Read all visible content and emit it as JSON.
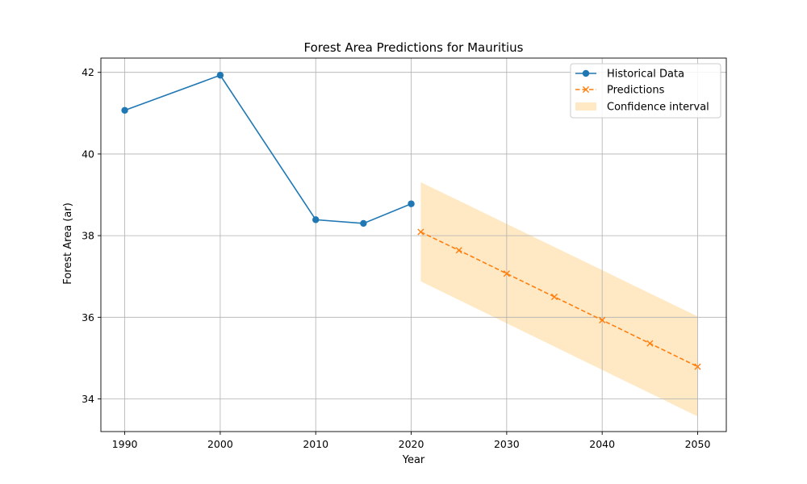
{
  "chart_data": {
    "type": "line",
    "title": "Forest Area Predictions for Mauritius",
    "xlabel": "Year",
    "ylabel": "Forest Area (ar)",
    "xlim": [
      1987.5,
      2053
    ],
    "ylim": [
      33.2,
      42.35
    ],
    "xticks": [
      1990,
      2000,
      2010,
      2020,
      2030,
      2040,
      2050
    ],
    "yticks": [
      34,
      36,
      38,
      40,
      42
    ],
    "grid": true,
    "legend_position": "top-right",
    "series": [
      {
        "name": "Historical Data",
        "style": "solid",
        "marker": "circle",
        "color": "#1f77b4",
        "x": [
          1990,
          2000,
          2010,
          2015,
          2020
        ],
        "y": [
          41.07,
          41.93,
          38.39,
          38.3,
          38.78
        ]
      },
      {
        "name": "Predictions",
        "style": "dashed",
        "marker": "x",
        "color": "#ff7f0e",
        "x": [
          2021,
          2025,
          2030,
          2035,
          2040,
          2045,
          2050
        ],
        "y": [
          38.09,
          37.64,
          37.07,
          36.5,
          35.93,
          35.36,
          34.79
        ]
      }
    ],
    "confidence_interval": {
      "name": "Confidence interval",
      "color": "#ffe9c4",
      "x": [
        2021,
        2050
      ],
      "upper": [
        39.31,
        36.02
      ],
      "lower": [
        36.88,
        33.57
      ]
    }
  }
}
